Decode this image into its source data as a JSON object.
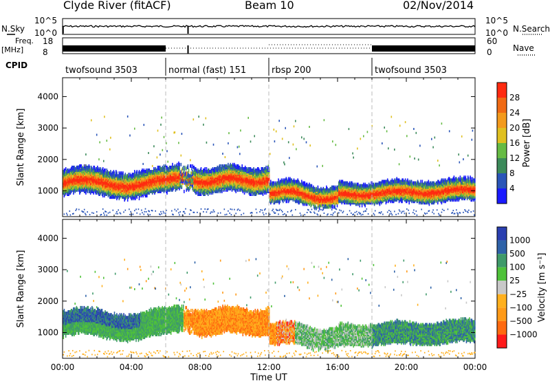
{
  "header": {
    "station": "Clyde River (fitACF)",
    "beam": "Beam 10",
    "date": "02/Nov/2014"
  },
  "noise_panel": {
    "left_label": "N.Sky",
    "right_label": "N.Search",
    "left_ticks": [
      "10^5",
      "10^0"
    ],
    "right_ticks": [
      "10^5",
      "10^0"
    ]
  },
  "freq_panel": {
    "left_label_1": "Freq.",
    "left_label_2": "[MHz]",
    "right_label": "Nave",
    "left_ticks": [
      "18",
      "8"
    ],
    "right_ticks": [
      "60",
      "0"
    ]
  },
  "cpid": {
    "label": "CPID",
    "segments": [
      {
        "name": "twofsound 3503",
        "start_hour": 0
      },
      {
        "name": "normal (fast) 151",
        "start_hour": 6
      },
      {
        "name": "rbsp 200",
        "start_hour": 12
      },
      {
        "name": "twofsound 3503",
        "start_hour": 18
      }
    ]
  },
  "colors": {
    "power": [
      "#1a1aff",
      "#2a55b8",
      "#3c8a5a",
      "#66bb44",
      "#e0c020",
      "#f39a1c",
      "#f06a14",
      "#ff2a10"
    ],
    "velocity": [
      "#ff1a1a",
      "#ff6a10",
      "#ff9a18",
      "#ffb01e",
      "#c8c8c8",
      "#4fc23a",
      "#3f9a6a",
      "#2e62a8",
      "#2a3fb0"
    ]
  },
  "chart_data": [
    {
      "type": "heatmap",
      "name": "power",
      "ylabel": "Slant Range [km]",
      "xlabel": "",
      "yticks": [
        "1000",
        "2000",
        "3000",
        "4000"
      ],
      "ylim": [
        180,
        4600
      ],
      "xlim_hours": [
        0,
        24
      ],
      "colorbar_label": "Power [dB]",
      "colorbar_ticks": [
        "4",
        "8",
        "12",
        "16",
        "20",
        "24",
        "28"
      ],
      "colorbar_range": [
        0,
        32
      ]
    },
    {
      "type": "heatmap",
      "name": "velocity",
      "ylabel": "Slant Range [km]",
      "xlabel": "Time UT",
      "xticks": [
        "00:00",
        "04:00",
        "08:00",
        "12:00",
        "16:00",
        "20:00",
        "00:00"
      ],
      "yticks": [
        "1000",
        "2000",
        "3000",
        "4000"
      ],
      "ylim": [
        180,
        4600
      ],
      "xlim_hours": [
        0,
        24
      ],
      "colorbar_label": "Velocity [m s⁻¹]",
      "colorbar_ticks": [
        "1000",
        "500",
        "100",
        "25",
        "−25",
        "−100",
        "−500",
        "−1000"
      ]
    }
  ]
}
